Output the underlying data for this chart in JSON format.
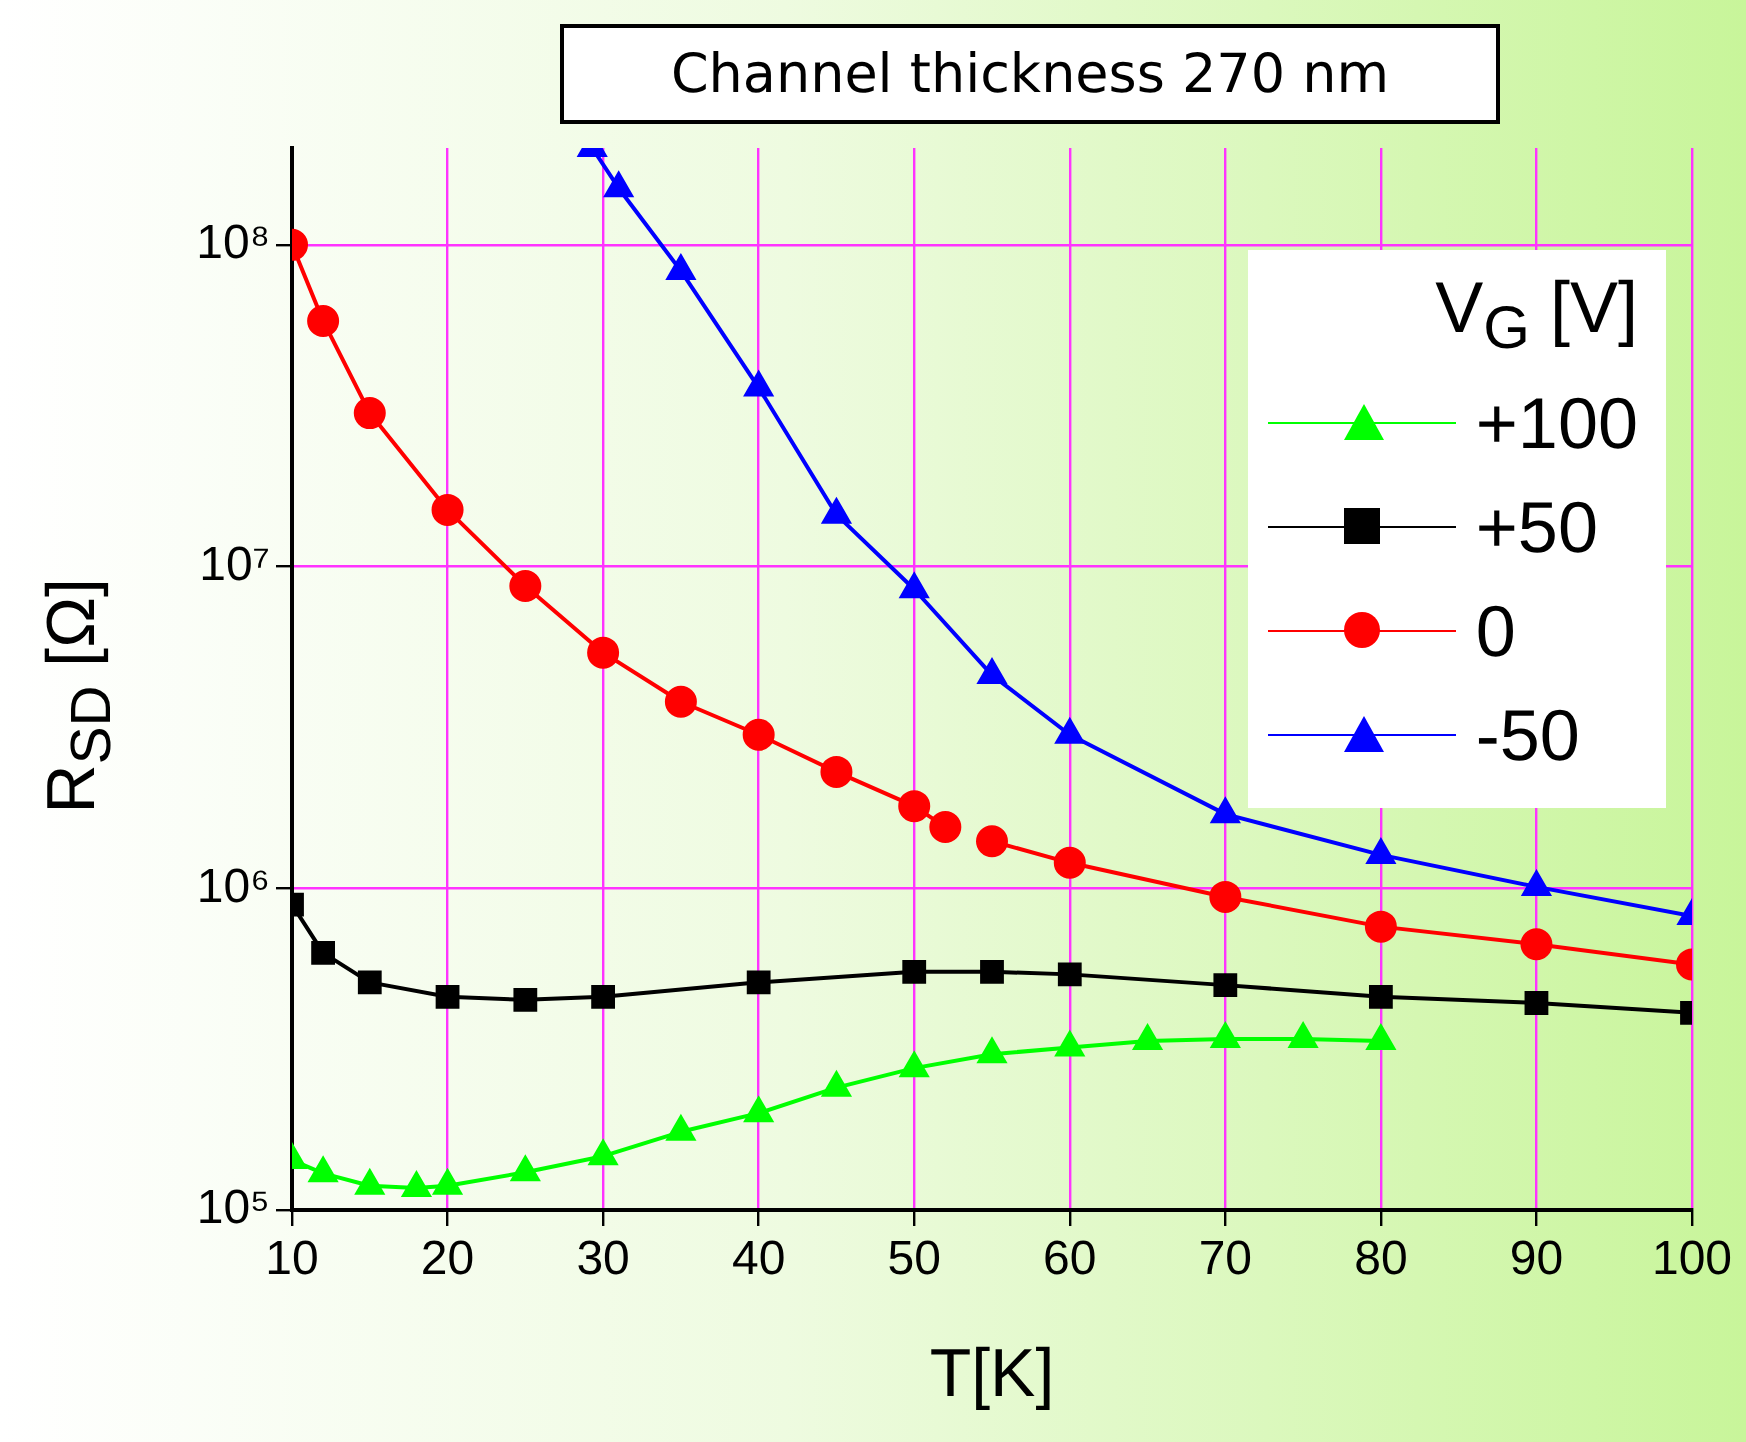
{
  "chart_data": {
    "type": "line",
    "title": "Channel thickness 270 nm",
    "xlabel": "T[K]",
    "ylabel": "R$_{SD}$ [Ω]",
    "legend_title": "V$_{G}$ [V]",
    "legend": "top right",
    "grid": true,
    "log": "y",
    "xlim": [
      10,
      100
    ],
    "xticks": [
      10,
      20,
      30,
      40,
      50,
      60,
      70,
      80,
      90,
      100
    ],
    "ylim": [
      100000,
      200000000
    ],
    "yticks": [
      {
        "value": 100000,
        "label": "10⁵"
      },
      {
        "value": 1000000,
        "label": "10⁶"
      },
      {
        "value": 10000000,
        "label": "10⁷"
      },
      {
        "value": 100000000,
        "label": "10⁸"
      }
    ],
    "series": [
      {
        "name": "+100",
        "color": "#00ff00",
        "marker": "triangle",
        "x": [
          10,
          12,
          15,
          18,
          20,
          25,
          30,
          35,
          40,
          45,
          50,
          55,
          60,
          65,
          70,
          75,
          80
        ],
        "values": [
          143000,
          130000,
          119000,
          117000,
          119000,
          131000,
          147000,
          175000,
          200000,
          240000,
          276000,
          305000,
          320000,
          335000,
          340000,
          340000,
          335000
        ]
      },
      {
        "name": "+50",
        "color": "#000000",
        "marker": "square",
        "x": [
          10,
          12,
          15,
          20,
          25,
          30,
          40,
          50,
          55,
          60,
          70,
          80,
          90,
          100
        ],
        "values": [
          890000,
          630000,
          510000,
          460000,
          450000,
          460000,
          510000,
          550000,
          550000,
          540000,
          500000,
          460000,
          440000,
          410000
        ]
      },
      {
        "name": "0",
        "color": "#ff0000",
        "marker": "circle",
        "x": [
          10,
          12,
          15,
          20,
          25,
          30,
          35,
          40,
          45,
          50,
          52,
          53,
          55,
          60,
          70,
          80,
          90,
          100
        ],
        "values": [
          100000000,
          58000000,
          30000000,
          15000000,
          8700000,
          5400000,
          3800000,
          3000000,
          2300000,
          1800000,
          1550000,
          null,
          1400000,
          1200000,
          940000,
          760000,
          670000,
          580000
        ]
      },
      {
        "name": "-50",
        "color": "#0000ff",
        "marker": "triangle",
        "x": [
          29.3,
          31,
          35,
          40,
          45,
          50,
          55,
          60,
          70,
          80,
          90,
          100
        ],
        "values": [
          200000000,
          150000000,
          83000000,
          36000000,
          14500000,
          8500000,
          4600000,
          3000000,
          1700000,
          1270000,
          1010000,
          820000
        ]
      }
    ]
  }
}
